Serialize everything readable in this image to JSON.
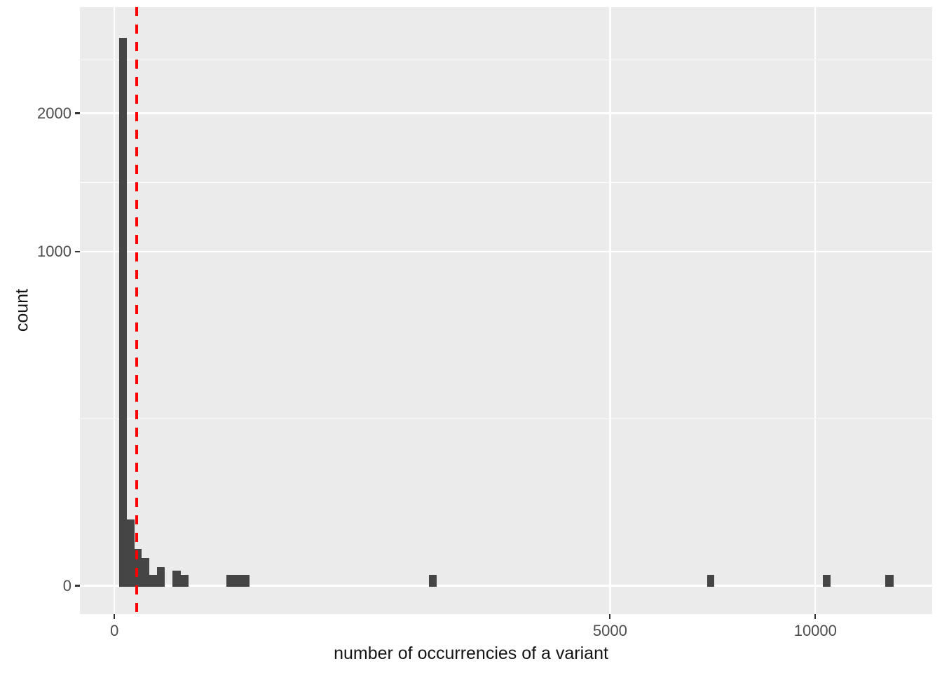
{
  "chart_data": {
    "type": "bar",
    "subtype": "histogram",
    "title": "",
    "xlabel": "number of occurrencies of a variant",
    "ylabel": "count",
    "x_scale": "sqrt",
    "y_scale": "sqrt",
    "grid": true,
    "legend_position": "none",
    "x_ticks": [
      0,
      5000,
      10000
    ],
    "x_tick_labels": [
      "0",
      "5000",
      "10000"
    ],
    "x_extended_break": 15000,
    "y_ticks": [
      0,
      1000,
      2000
    ],
    "y_tick_labels": [
      "0",
      "1000",
      "2000"
    ],
    "y_extended_break": 3000,
    "ylim": [
      0,
      3000
    ],
    "xlim": [
      0,
      13600
    ],
    "bins": [
      {
        "x_from": 0.5,
        "x_to": 3.2,
        "count": 2690
      },
      {
        "x_from": 3.2,
        "x_to": 8.1,
        "count": 39
      },
      {
        "x_from": 8.1,
        "x_to": 15.3,
        "count": 12
      },
      {
        "x_from": 15.3,
        "x_to": 24.8,
        "count": 7
      },
      {
        "x_from": 24.8,
        "x_to": 36.8,
        "count": 1
      },
      {
        "x_from": 36.8,
        "x_to": 51.4,
        "count": 3
      },
      {
        "x_from": 68.4,
        "x_to": 89.7,
        "count": 2
      },
      {
        "x_from": 89.7,
        "x_to": 111.7,
        "count": 1
      },
      {
        "x_from": 256,
        "x_to": 373,
        "count": 1
      },
      {
        "x_from": 2011,
        "x_to": 2110,
        "count": 1
      },
      {
        "x_from": 7144,
        "x_to": 7322,
        "count": 1
      },
      {
        "x_from": 10217,
        "x_to": 10438,
        "count": 1
      },
      {
        "x_from": 12093,
        "x_to": 12348,
        "count": 1
      }
    ],
    "vline": {
      "x": 10,
      "style": "dashed",
      "color": "#FF0000"
    },
    "colors": {
      "bar": "#454545",
      "panel_background": "#EBEBEB",
      "gridline": "#FFFFFF",
      "tick_text": "#4D4D4D",
      "axis_title_text": "#141414",
      "tick_mark": "#333333",
      "figure_background": "#FFFFFF"
    }
  }
}
